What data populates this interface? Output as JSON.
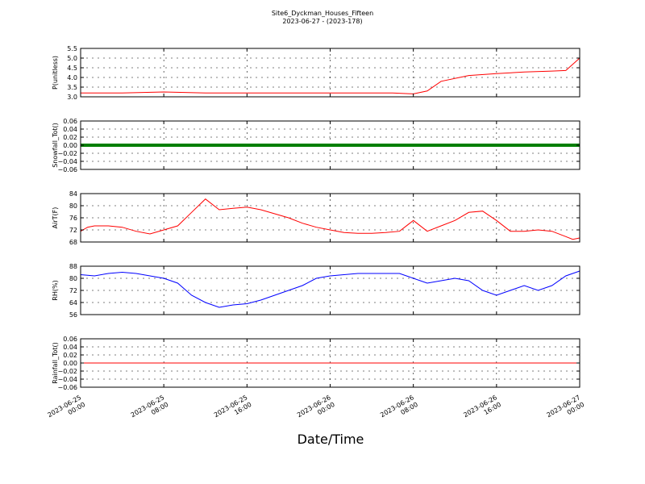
{
  "figure": {
    "title_line1": "Site6_Dyckman_Houses_Fifteen",
    "title_line2": "2023-06-27 - (2023-178)",
    "xlabel": "Date/Time",
    "x_ticks": [
      {
        "line1": "2023-06-25",
        "line2": "00:00"
      },
      {
        "line1": "2023-06-25",
        "line2": "08:00"
      },
      {
        "line1": "2023-06-25",
        "line2": "16:00"
      },
      {
        "line1": "2023-06-26",
        "line2": "00:00"
      },
      {
        "line1": "2023-06-26",
        "line2": "08:00"
      },
      {
        "line1": "2023-06-26",
        "line2": "16:00"
      },
      {
        "line1": "2023-06-27",
        "line2": "00:00"
      }
    ]
  },
  "chart_data": [
    {
      "type": "line",
      "ylabel": "P(unitless)",
      "ylim": [
        3.0,
        5.5
      ],
      "yticks": [
        "3.0",
        "3.5",
        "4.0",
        "4.5",
        "5.0",
        "5.5"
      ],
      "grid": true,
      "color": "#ff0000",
      "x_hours": [
        0,
        6,
        12,
        18,
        24,
        30,
        36,
        42,
        45,
        48,
        50,
        52,
        56,
        60,
        64,
        68,
        70,
        72
      ],
      "values": [
        3.2,
        3.2,
        3.25,
        3.2,
        3.2,
        3.2,
        3.2,
        3.2,
        3.2,
        3.15,
        3.3,
        3.8,
        4.1,
        4.2,
        4.28,
        4.33,
        4.36,
        5.0
      ]
    },
    {
      "type": "line",
      "ylabel": "Snowfall_Tot()",
      "ylim": [
        -0.06,
        0.06
      ],
      "yticks": [
        "−0.06",
        "−0.04",
        "−0.02",
        "0.00",
        "0.02",
        "0.04",
        "0.06"
      ],
      "grid": true,
      "color": "#007f00",
      "x_hours": [
        0,
        72
      ],
      "values": [
        0.0,
        0.0
      ]
    },
    {
      "type": "line",
      "ylabel": "AirT(F)",
      "ylim": [
        68,
        86
      ],
      "yticks": [
        "68",
        "72",
        "76",
        "80",
        "84"
      ],
      "grid": true,
      "color": "#ff0000",
      "x_hours": [
        0,
        1,
        2,
        4,
        6,
        8,
        10,
        12,
        14,
        16,
        18,
        20,
        22,
        24,
        26,
        28,
        30,
        32,
        34,
        36,
        38,
        40,
        42,
        44,
        46,
        48,
        50,
        52,
        54,
        56,
        58,
        60,
        62,
        64,
        66,
        68,
        70,
        71,
        72
      ],
      "values": [
        72,
        73.5,
        74,
        74,
        73.5,
        72,
        71,
        72.5,
        74,
        79,
        84,
        80,
        80.5,
        81,
        80,
        78.5,
        77,
        75,
        73.5,
        72.5,
        71.5,
        71.2,
        71.2,
        71.5,
        72,
        76,
        72,
        74,
        76,
        79,
        79.5,
        76,
        72,
        72,
        72.5,
        72,
        70,
        69,
        69.5
      ]
    },
    {
      "type": "line",
      "ylabel": "RH(%)",
      "ylim": [
        52,
        92
      ],
      "yticks": [
        "56",
        "64",
        "72",
        "80",
        "88"
      ],
      "grid": true,
      "color": "#0000ff",
      "x_hours": [
        0,
        2,
        4,
        6,
        8,
        10,
        12,
        14,
        16,
        18,
        20,
        22,
        24,
        26,
        28,
        30,
        32,
        34,
        36,
        38,
        40,
        42,
        44,
        46,
        48,
        50,
        52,
        54,
        56,
        58,
        60,
        62,
        64,
        66,
        68,
        70,
        72
      ],
      "values": [
        85,
        84,
        86,
        87,
        86,
        84,
        82,
        78,
        68,
        62,
        58,
        60,
        61,
        64,
        68,
        72,
        76,
        82,
        84,
        85,
        86,
        86,
        86,
        86,
        82,
        78,
        80,
        82,
        80,
        72,
        68,
        72,
        76,
        72,
        76,
        84,
        88
      ]
    },
    {
      "type": "line",
      "ylabel": "Rainfall_Tot()",
      "ylim": [
        -0.06,
        0.06
      ],
      "yticks": [
        "−0.06",
        "−0.04",
        "−0.02",
        "0.00",
        "0.02",
        "0.04",
        "0.06"
      ],
      "grid": true,
      "color": "#ff0000",
      "x_hours": [
        0,
        72
      ],
      "values": [
        0.0,
        0.0
      ]
    }
  ]
}
